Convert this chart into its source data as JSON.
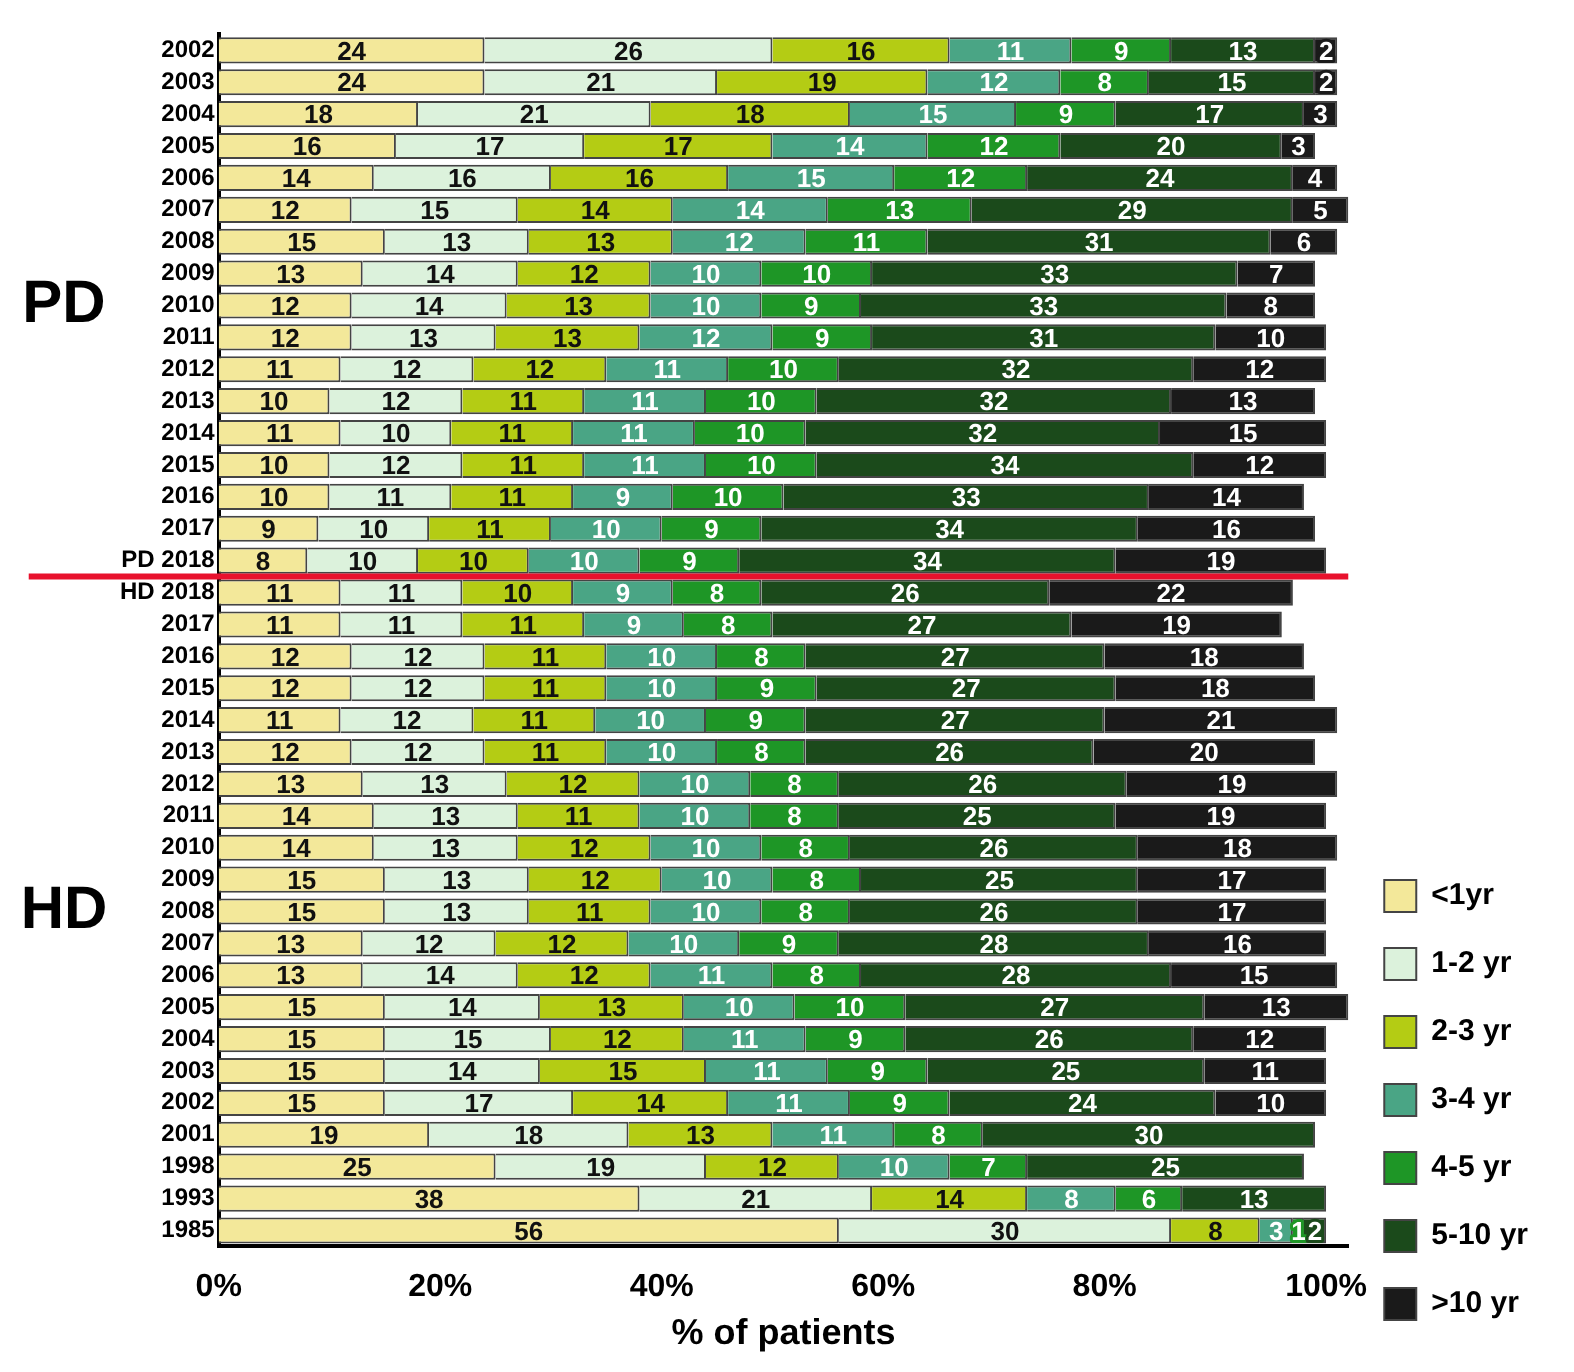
{
  "chart_data": {
    "type": "bar",
    "orientation": "horizontal",
    "stacked": true,
    "xlabel": "% of patients",
    "categories": [
      "2002",
      "2003",
      "2004",
      "2005",
      "2006",
      "2007",
      "2008",
      "2009",
      "2010",
      "2011",
      "2012",
      "2013",
      "2014",
      "2015",
      "2016",
      "2017",
      "PD 2018",
      "HD 2018",
      "2017",
      "2016",
      "2015",
      "2014",
      "2013",
      "2012",
      "2011",
      "2010",
      "2009",
      "2008",
      "2007",
      "2006",
      "2005",
      "2004",
      "2003",
      "2002",
      "2001",
      "1998",
      "1993",
      "1985"
    ],
    "series": [
      {
        "name": "<1yr",
        "color": "#f3e89a",
        "values": [
          24,
          24,
          18,
          16,
          14,
          12,
          15,
          13,
          12,
          12,
          11,
          10,
          11,
          10,
          10,
          9,
          8,
          11,
          11,
          12,
          12,
          11,
          12,
          13,
          14,
          14,
          15,
          15,
          13,
          13,
          15,
          15,
          15,
          15,
          19,
          25,
          38,
          56
        ]
      },
      {
        "name": "1-2 yr",
        "color": "#dcf2dc",
        "values": [
          26,
          21,
          21,
          17,
          16,
          15,
          13,
          14,
          14,
          13,
          12,
          12,
          10,
          12,
          11,
          10,
          10,
          11,
          11,
          12,
          12,
          12,
          12,
          13,
          13,
          13,
          13,
          13,
          12,
          14,
          14,
          15,
          14,
          17,
          18,
          19,
          21,
          30
        ]
      },
      {
        "name": "2-3 yr",
        "color": "#b4cc14",
        "values": [
          16,
          19,
          18,
          17,
          16,
          14,
          13,
          12,
          13,
          13,
          12,
          11,
          11,
          11,
          11,
          11,
          10,
          10,
          11,
          11,
          11,
          11,
          11,
          12,
          11,
          12,
          12,
          11,
          12,
          12,
          13,
          12,
          15,
          14,
          13,
          12,
          14,
          8
        ]
      },
      {
        "name": "3-4 yr",
        "color": "#4aa585",
        "values": [
          11,
          12,
          15,
          14,
          15,
          14,
          12,
          10,
          10,
          12,
          11,
          11,
          11,
          11,
          9,
          10,
          10,
          9,
          9,
          10,
          10,
          10,
          10,
          10,
          10,
          10,
          10,
          10,
          10,
          11,
          10,
          11,
          11,
          11,
          11,
          10,
          8,
          3
        ]
      },
      {
        "name": "4-5 yr",
        "color": "#1e9626",
        "values": [
          9,
          8,
          9,
          12,
          12,
          13,
          11,
          10,
          9,
          9,
          10,
          10,
          10,
          10,
          10,
          9,
          9,
          8,
          8,
          8,
          9,
          9,
          8,
          8,
          8,
          8,
          8,
          8,
          9,
          8,
          10,
          9,
          9,
          9,
          8,
          7,
          6,
          1
        ]
      },
      {
        "name": "5-10 yr",
        "color": "#1b4a1b",
        "values": [
          13,
          15,
          17,
          20,
          24,
          29,
          31,
          33,
          33,
          31,
          32,
          32,
          32,
          34,
          33,
          34,
          34,
          26,
          27,
          27,
          27,
          27,
          26,
          26,
          25,
          26,
          25,
          26,
          28,
          28,
          27,
          26,
          25,
          24,
          30,
          25,
          13,
          2
        ]
      },
      {
        "name": ">10 yr",
        "color": "#1a1a1a",
        "values": [
          2,
          2,
          3,
          3,
          4,
          5,
          6,
          7,
          8,
          10,
          12,
          13,
          15,
          12,
          14,
          16,
          19,
          22,
          19,
          18,
          18,
          21,
          20,
          19,
          19,
          18,
          17,
          17,
          16,
          15,
          13,
          12,
          11,
          10,
          null,
          null,
          null,
          null
        ]
      }
    ],
    "xlim": [
      0,
      102
    ],
    "xticks": [
      {
        "value": 0,
        "label": "0%"
      },
      {
        "value": 20,
        "label": "20%"
      },
      {
        "value": 40,
        "label": "40%"
      },
      {
        "value": 60,
        "label": "60%"
      },
      {
        "value": 80,
        "label": "80%"
      },
      {
        "value": 100,
        "label": "100%"
      }
    ],
    "ref_lines": [
      {
        "axis": "y",
        "value": "PD 2018",
        "color": "#e8112d"
      }
    ],
    "annotations": [
      "PD",
      "HD"
    ],
    "data_labels": true,
    "legend": "right",
    "grid": false
  }
}
